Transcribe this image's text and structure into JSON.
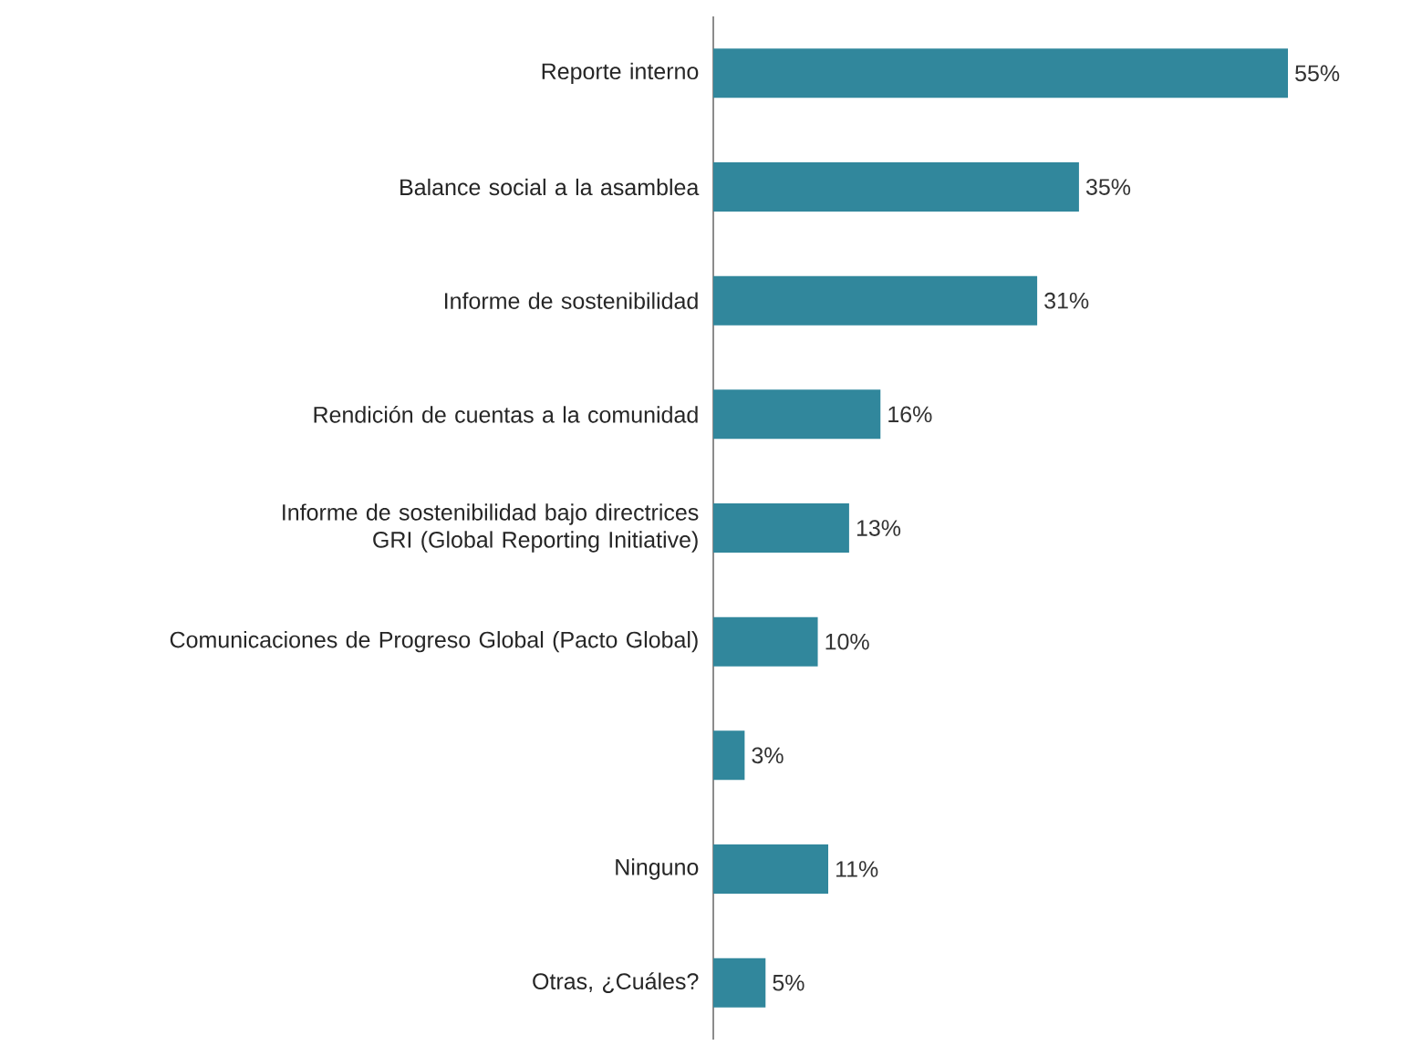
{
  "chart_data": {
    "type": "bar",
    "orientation": "horizontal",
    "categories": [
      "Reporte interno",
      "Balance social a la asamblea",
      "Informe de sostenibilidad",
      "Rendición de cuentas a la comunidad",
      "Informe de sostenibilidad bajo directrices GRI (Global Reporting Initiative)",
      "Comunicaciones de Progreso Global (Pacto Global)",
      null,
      "Ninguno",
      "Otras, ¿Cuáles?"
    ],
    "values": [
      55,
      35,
      31,
      16,
      13,
      10,
      3,
      11,
      5
    ],
    "value_labels": [
      "55%",
      "35%",
      "31%",
      "16%",
      "13%",
      "10%",
      "3%",
      "11%",
      "5%"
    ],
    "color": "#31879c"
  }
}
